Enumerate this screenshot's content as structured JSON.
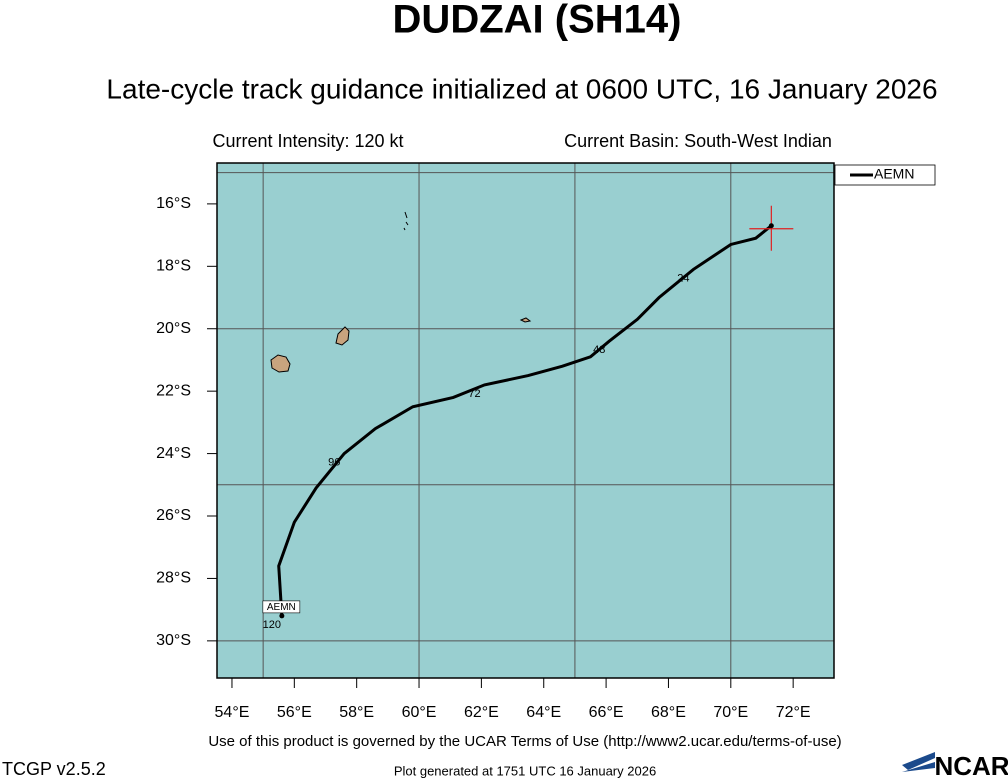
{
  "header": {
    "title": "DUDZAI (SH14)",
    "subtitle": "Late-cycle track guidance initialized at 0600 UTC, 16 January 2026",
    "intensity": "Current Intensity: 120 kt",
    "basin": "Current Basin: South-West Indian"
  },
  "chart_data": {
    "type": "line",
    "xlim": [
      53.52,
      73.31
    ],
    "ylim": [
      -31.19,
      -14.69
    ],
    "xticks": [
      {
        "value": 54,
        "label": "54°E"
      },
      {
        "value": 56,
        "label": "56°E"
      },
      {
        "value": 58,
        "label": "58°E"
      },
      {
        "value": 60,
        "label": "60°E"
      },
      {
        "value": 62,
        "label": "62°E"
      },
      {
        "value": 64,
        "label": "64°E"
      },
      {
        "value": 66,
        "label": "66°E"
      },
      {
        "value": 68,
        "label": "68°E"
      },
      {
        "value": 70,
        "label": "70°E"
      },
      {
        "value": 72,
        "label": "72°E"
      }
    ],
    "yticks": [
      {
        "value": -16,
        "label": "16°S"
      },
      {
        "value": -18,
        "label": "18°S"
      },
      {
        "value": -20,
        "label": "20°S"
      },
      {
        "value": -22,
        "label": "22°S"
      },
      {
        "value": -24,
        "label": "24°S"
      },
      {
        "value": -26,
        "label": "26°S"
      },
      {
        "value": -28,
        "label": "28°S"
      },
      {
        "value": -30,
        "label": "30°S"
      }
    ],
    "grid_x": [
      55,
      60,
      65,
      70
    ],
    "grid_y": [
      -15,
      -20,
      -25,
      -30
    ],
    "background": "#99cfd0",
    "legend": "upper-right-outside",
    "series": [
      {
        "name": "AEMN",
        "color": "#000000",
        "x": [
          71.3,
          70.8,
          70.0,
          68.8,
          67.7,
          67.0,
          66.1,
          65.5,
          64.6,
          63.5,
          62.1,
          61.1,
          59.8,
          58.6,
          57.6,
          56.7,
          56.0,
          55.5,
          55.6
        ],
        "values": [
          -16.7,
          -17.1,
          -17.3,
          -18.1,
          -19.0,
          -19.7,
          -20.4,
          -20.9,
          -21.2,
          -21.5,
          -21.8,
          -22.2,
          -22.5,
          -23.2,
          -24.0,
          -25.1,
          -26.2,
          -27.6,
          -29.2
        ],
        "hour_labels": [
          null,
          null,
          null,
          24,
          null,
          null,
          48,
          null,
          null,
          null,
          72,
          null,
          null,
          null,
          96,
          null,
          null,
          null,
          120
        ]
      }
    ]
  },
  "footer": {
    "terms": "Use of this product is governed by the UCAR Terms of Use (http://www2.ucar.edu/terms-of-use)",
    "version": "TCGP v2.5.2",
    "generated": "Plot generated at 1751 UTC   16 January 2026",
    "logo": "NCAR"
  }
}
